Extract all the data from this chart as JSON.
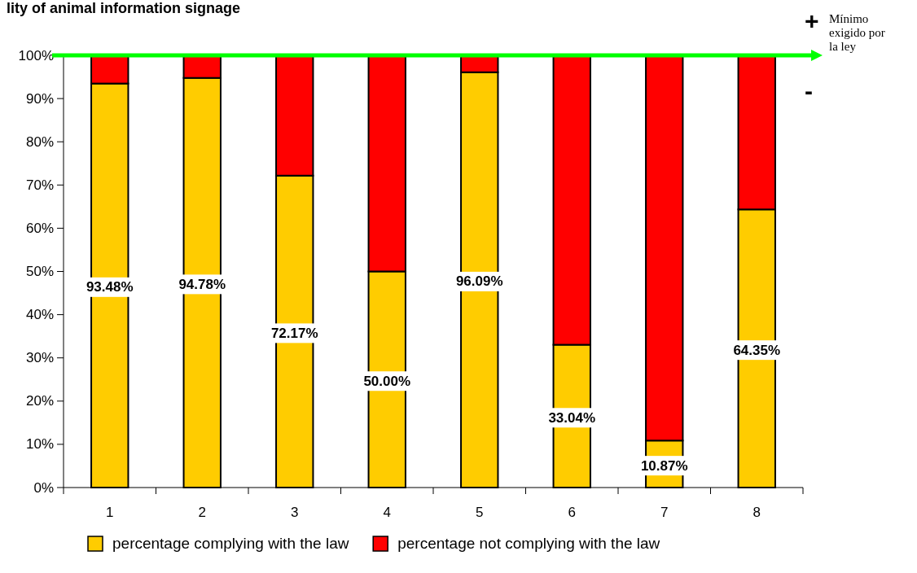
{
  "chart_data": {
    "type": "bar",
    "title": "lity of animal information signage",
    "stacked": true,
    "categories": [
      "1",
      "2",
      "3",
      "4",
      "5",
      "6",
      "7",
      "8"
    ],
    "series": [
      {
        "name": "percentage complying with the law",
        "color": "#ffcc00",
        "values": [
          93.48,
          94.78,
          72.17,
          50.0,
          96.09,
          33.04,
          10.87,
          64.35
        ],
        "value_labels": [
          "93.48%",
          "94.78%",
          "72.17%",
          "50.00%",
          "96.09%",
          "33.04%",
          "10.87%",
          "64.35%"
        ]
      },
      {
        "name": "percentage not complying with the law",
        "color": "#ff0000",
        "values": [
          6.52,
          5.22,
          27.83,
          50.0,
          3.91,
          66.96,
          89.13,
          35.65
        ]
      }
    ],
    "ylim": [
      0,
      100
    ],
    "yticks": [
      {
        "value": 0,
        "label": "0%"
      },
      {
        "value": 10,
        "label": "10%"
      },
      {
        "value": 20,
        "label": "20%"
      },
      {
        "value": 30,
        "label": "30%"
      },
      {
        "value": 40,
        "label": "40%"
      },
      {
        "value": 50,
        "label": "50%"
      },
      {
        "value": 60,
        "label": "60%"
      },
      {
        "value": 70,
        "label": "70%"
      },
      {
        "value": 80,
        "label": "80%"
      },
      {
        "value": 90,
        "label": "90%"
      },
      {
        "value": 100,
        "label": "100%"
      }
    ],
    "ref_lines": [
      {
        "axis": "y",
        "value": 100,
        "label": "Mínimo exigido por la ley",
        "color": "#00ff00"
      }
    ],
    "annotations": [
      "+",
      "-"
    ],
    "grid": false,
    "legend": "bottom"
  }
}
